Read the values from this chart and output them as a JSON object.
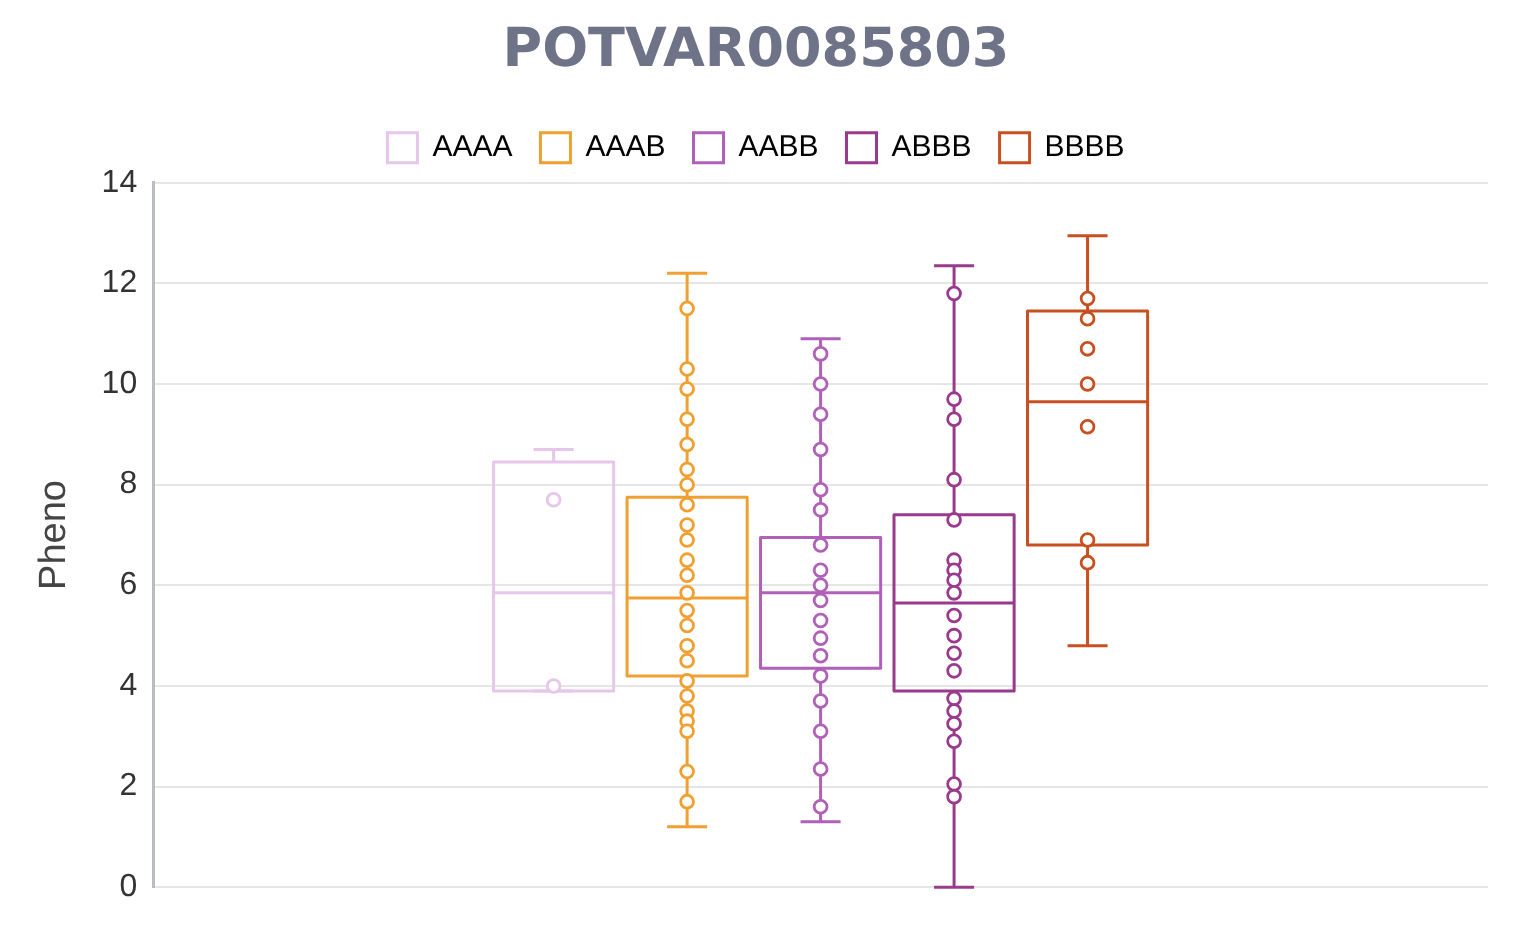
{
  "chart_data": {
    "type": "box",
    "title": "POTVAR0085803",
    "ylabel": "Pheno",
    "categories": [
      null
    ],
    "ylim": [
      0,
      14
    ],
    "yticks": [
      0,
      2,
      4,
      6,
      8,
      10,
      12,
      14
    ],
    "grid": "y",
    "legend": "top",
    "marker": "circle",
    "series": [
      {
        "name": "AAAA",
        "color": "#e6c6ea",
        "boxes": [
          {
            "low": 3.9,
            "q1": 3.9,
            "median": 5.85,
            "q3": 8.45,
            "high": 8.7,
            "outliers": [
              7.7,
              4.0
            ]
          }
        ]
      },
      {
        "name": "AAAB",
        "color": "#f0a030",
        "boxes": [
          {
            "low": 1.2,
            "q1": 4.2,
            "median": 5.75,
            "q3": 7.75,
            "high": 12.2,
            "outliers": [
              11.5,
              10.3,
              9.9,
              9.3,
              8.8,
              8.3,
              8.0,
              7.6,
              7.2,
              6.9,
              6.5,
              6.2,
              5.85,
              5.5,
              5.2,
              4.8,
              4.5,
              4.1,
              3.8,
              3.5,
              3.3,
              3.1,
              2.3,
              1.7
            ]
          }
        ]
      },
      {
        "name": "AABB",
        "color": "#b060b8",
        "boxes": [
          {
            "low": 1.3,
            "q1": 4.35,
            "median": 5.85,
            "q3": 6.95,
            "high": 10.9,
            "outliers": [
              10.6,
              10.0,
              9.4,
              8.7,
              7.9,
              7.5,
              6.8,
              6.3,
              6.0,
              5.7,
              5.3,
              4.95,
              4.6,
              4.2,
              3.7,
              3.1,
              2.35,
              1.6
            ]
          }
        ]
      },
      {
        "name": "ABBB",
        "color": "#9a3a8c",
        "boxes": [
          {
            "low": 0,
            "q1": 3.9,
            "median": 5.65,
            "q3": 7.4,
            "high": 12.35,
            "outliers": [
              11.8,
              9.7,
              9.3,
              8.1,
              7.3,
              6.5,
              6.3,
              6.1,
              5.85,
              5.4,
              5.0,
              4.65,
              4.3,
              3.75,
              3.5,
              3.25,
              2.9,
              2.05,
              1.8
            ]
          }
        ]
      },
      {
        "name": "BBBB",
        "color": "#c85020",
        "boxes": [
          {
            "low": 4.8,
            "q1": 6.8,
            "median": 9.65,
            "q3": 11.45,
            "high": 12.95,
            "outliers": [
              11.7,
              11.3,
              10.7,
              10.0,
              9.15,
              6.9,
              6.45
            ]
          }
        ]
      }
    ]
  }
}
